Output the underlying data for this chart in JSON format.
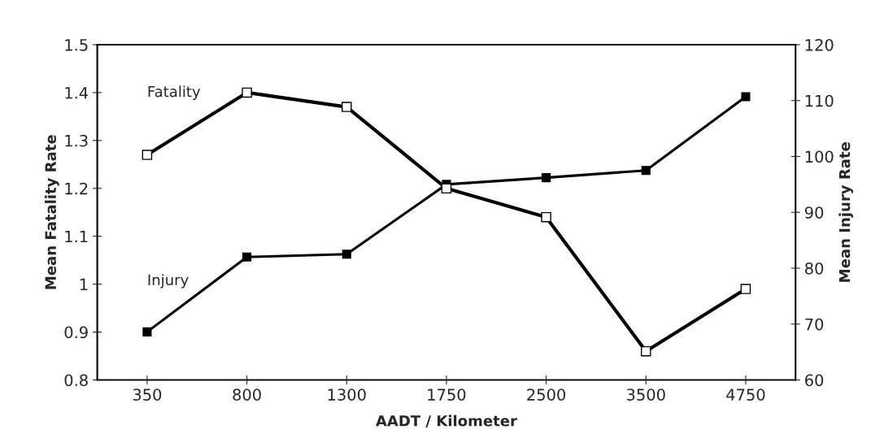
{
  "chart_data": {
    "type": "line",
    "xlabel": "AADT / Kilometer",
    "ylabel": "Mean Fatality Rate",
    "y2label": "Mean Injury Rate",
    "categories": [
      "350",
      "800",
      "1300",
      "1750",
      "2500",
      "3500",
      "4750"
    ],
    "series": [
      {
        "name": "Fatality",
        "color": "#000000",
        "marker": "square",
        "values": [
          1.27,
          1.4,
          1.37,
          1.2,
          1.14,
          0.86,
          0.99
        ]
      },
      {
        "name": "Injury",
        "color": "#000000",
        "marker": "square",
        "axis": "y2",
        "values": [
          68.6,
          82.0,
          82.5,
          95.0,
          96.2,
          97.5,
          110.7
        ]
      }
    ],
    "ylim": [
      0.8,
      1.5
    ],
    "yticks": [
      0.8,
      0.9,
      {
        "value": 1,
        "label": "1"
      },
      1.1,
      1.2,
      1.3,
      1.4,
      1.5
    ],
    "y2lim": [
      60,
      120
    ],
    "y2ticks": [
      60,
      70,
      80,
      90,
      100,
      110,
      120
    ],
    "grid": false,
    "legend": false
  }
}
